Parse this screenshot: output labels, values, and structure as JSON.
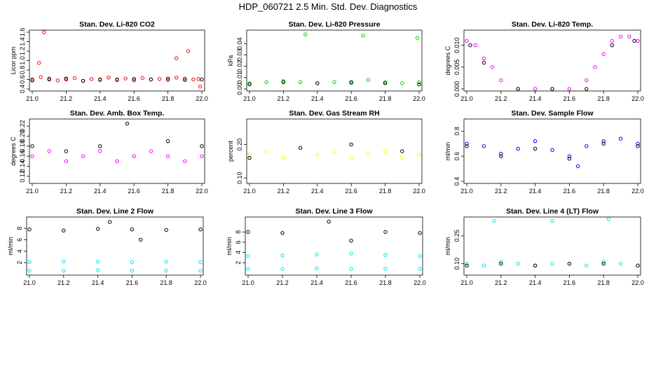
{
  "figure": {
    "title": "HDP_060721  2.5 Min. Std. Dev. Diagnostics"
  },
  "colors": {
    "black": "#000000",
    "red": "#ff0000",
    "green": "#00cc00",
    "magenta": "#ff00ff",
    "yellow": "#ffff00",
    "blue": "#0000ff",
    "cyan": "#00e5ee"
  },
  "chart_data": [
    {
      "type": "scatter",
      "title": "Stan. Dev. Li-820 CO2",
      "xlabel": "",
      "ylabel": "Licor ppm",
      "xlim": [
        21.0,
        22.0
      ],
      "ylim": [
        0.4,
        1.6
      ],
      "xticks": [
        21.0,
        21.2,
        21.4,
        21.6,
        21.8,
        22.0
      ],
      "yticks": [
        0.4,
        0.6,
        0.8,
        1.0,
        1.2,
        1.4,
        1.6
      ],
      "xtick_labels": [
        "21.0",
        "21.2",
        "21.4",
        "21.6",
        "21.8",
        "22.0"
      ],
      "ytick_labels": [
        "0.4",
        "0.6",
        "0.8",
        "1.0",
        "1.2",
        "1.4",
        "1.6"
      ],
      "series": [
        {
          "name": "red",
          "color": "#ff0000",
          "x": [
            21.0,
            21.05,
            21.1,
            21.15,
            21.2,
            21.25,
            21.3,
            21.35,
            21.4,
            21.45,
            21.5,
            21.55,
            21.6,
            21.65,
            21.7,
            21.75,
            21.8,
            21.85,
            21.9,
            21.95,
            21.98,
            21.07,
            21.04,
            21.85,
            21.92,
            21.99
          ],
          "values": [
            0.6,
            0.65,
            0.62,
            0.58,
            0.6,
            0.63,
            0.57,
            0.61,
            0.59,
            0.64,
            0.6,
            0.62,
            0.58,
            0.63,
            0.6,
            0.61,
            0.59,
            0.64,
            0.62,
            0.6,
            0.61,
            1.6,
            0.95,
            1.05,
            1.2,
            0.45
          ]
        },
        {
          "name": "black",
          "color": "#000000",
          "x": [
            21.0,
            21.1,
            21.2,
            21.3,
            21.4,
            21.5,
            21.6,
            21.7,
            21.8,
            21.9,
            22.0
          ],
          "values": [
            0.58,
            0.6,
            0.62,
            0.57,
            0.6,
            0.59,
            0.61,
            0.6,
            0.62,
            0.59,
            0.6
          ]
        }
      ]
    },
    {
      "type": "scatter",
      "title": "Stan. Dev. Li-820 Pressure",
      "xlabel": "",
      "ylabel": "kPa",
      "xlim": [
        21.0,
        22.0
      ],
      "ylim": [
        0.0,
        0.05
      ],
      "xticks": [
        21.0,
        21.2,
        21.4,
        21.6,
        21.8,
        22.0
      ],
      "yticks": [
        0.0,
        0.01,
        0.02,
        0.03,
        0.04
      ],
      "xtick_labels": [
        "21.0",
        "21.2",
        "21.4",
        "21.6",
        "21.8",
        "22.0"
      ],
      "ytick_labels": [
        "0.00",
        "0.01",
        "0.02",
        "0.03",
        "0.04"
      ],
      "series": [
        {
          "name": "green",
          "color": "#00cc00",
          "x": [
            21.0,
            21.1,
            21.2,
            21.3,
            21.4,
            21.5,
            21.6,
            21.7,
            21.8,
            21.9,
            22.0,
            21.33,
            21.67,
            21.99
          ],
          "values": [
            0.005,
            0.006,
            0.007,
            0.006,
            0.005,
            0.006,
            0.005,
            0.008,
            0.006,
            0.005,
            0.006,
            0.048,
            0.047,
            0.045
          ]
        },
        {
          "name": "black",
          "color": "#000000",
          "x": [
            21.0,
            21.2,
            21.4,
            21.6,
            21.8,
            22.0
          ],
          "values": [
            0.004,
            0.006,
            0.005,
            0.006,
            0.005,
            0.004
          ]
        }
      ]
    },
    {
      "type": "scatter",
      "title": "Stan. Dev. Li-820 Temp.",
      "xlabel": "",
      "ylabel": "degrees C",
      "xlim": [
        21.0,
        22.0
      ],
      "ylim": [
        0.0,
        0.013
      ],
      "xticks": [
        21.0,
        21.2,
        21.4,
        21.6,
        21.8,
        22.0
      ],
      "yticks": [
        0.0,
        0.005,
        0.01
      ],
      "xtick_labels": [
        "21.0",
        "21.2",
        "21.4",
        "21.6",
        "21.8",
        "22.0"
      ],
      "ytick_labels": [
        "0.000",
        "0.005",
        "0.010"
      ],
      "series": [
        {
          "name": "magenta",
          "color": "#ff00ff",
          "x": [
            21.0,
            21.05,
            21.1,
            21.15,
            21.2,
            21.3,
            21.4,
            21.5,
            21.6,
            21.7,
            21.75,
            21.8,
            21.85,
            21.9,
            21.95,
            22.0
          ],
          "values": [
            0.011,
            0.01,
            0.007,
            0.005,
            0.002,
            0.0,
            0.0,
            0.0,
            0.0,
            0.002,
            0.005,
            0.008,
            0.011,
            0.012,
            0.012,
            0.011
          ]
        },
        {
          "name": "black",
          "color": "#000000",
          "x": [
            21.02,
            21.1,
            21.3,
            21.5,
            21.7,
            21.85,
            21.98
          ],
          "values": [
            0.01,
            0.006,
            0.0,
            0.0,
            0.0,
            0.01,
            0.011
          ]
        }
      ]
    },
    {
      "type": "scatter",
      "title": "Stan. Dev. Amb. Box Temp.",
      "xlabel": "",
      "ylabel": "degrees C",
      "xlim": [
        21.0,
        22.0
      ],
      "ylim": [
        0.11,
        0.23
      ],
      "xticks": [
        21.0,
        21.2,
        21.4,
        21.6,
        21.8,
        22.0
      ],
      "yticks": [
        0.12,
        0.14,
        0.16,
        0.18,
        0.2,
        0.22
      ],
      "xtick_labels": [
        "21.0",
        "21.2",
        "21.4",
        "21.6",
        "21.8",
        "22.0"
      ],
      "ytick_labels": [
        "0.12",
        "0.14",
        "0.16",
        "0.18",
        "0.20",
        "0.22"
      ],
      "series": [
        {
          "name": "magenta",
          "color": "#ff00ff",
          "x": [
            21.0,
            21.1,
            21.2,
            21.3,
            21.4,
            21.5,
            21.6,
            21.7,
            21.8,
            21.9,
            22.0
          ],
          "values": [
            0.16,
            0.17,
            0.15,
            0.16,
            0.17,
            0.15,
            0.16,
            0.17,
            0.16,
            0.15,
            0.16
          ]
        },
        {
          "name": "black",
          "color": "#000000",
          "x": [
            21.0,
            21.2,
            21.4,
            21.56,
            21.8,
            22.0
          ],
          "values": [
            0.18,
            0.17,
            0.18,
            0.225,
            0.19,
            0.18
          ]
        }
      ]
    },
    {
      "type": "scatter",
      "title": "Stan. Dev. Gas Stream RH",
      "xlabel": "",
      "ylabel": "percent",
      "xlim": [
        21.0,
        22.0
      ],
      "ylim": [
        0.09,
        0.27
      ],
      "xticks": [
        21.0,
        21.2,
        21.4,
        21.6,
        21.8,
        22.0
      ],
      "yticks": [
        0.1,
        0.2
      ],
      "xtick_labels": [
        "21.0",
        "21.2",
        "21.4",
        "21.6",
        "21.8",
        "22.0"
      ],
      "ytick_labels": [
        "0.10",
        "0.20"
      ],
      "series": [
        {
          "name": "yellow",
          "color": "#ffff00",
          "x": [
            21.0,
            21.1,
            21.2,
            21.3,
            21.4,
            21.5,
            21.6,
            21.7,
            21.8,
            21.9,
            22.0
          ],
          "values": [
            0.17,
            0.18,
            0.16,
            0.19,
            0.17,
            0.18,
            0.16,
            0.17,
            0.18,
            0.16,
            0.17
          ]
        },
        {
          "name": "black",
          "color": "#000000",
          "x": [
            21.0,
            21.3,
            21.6,
            21.9
          ],
          "values": [
            0.16,
            0.19,
            0.2,
            0.18
          ]
        }
      ]
    },
    {
      "type": "scatter",
      "title": "Stan. Dev. Sample Flow",
      "xlabel": "",
      "ylabel": "ml/min",
      "xlim": [
        21.0,
        22.0
      ],
      "ylim": [
        0.4,
        0.88
      ],
      "xticks": [
        21.0,
        21.2,
        21.4,
        21.6,
        21.8,
        22.0
      ],
      "yticks": [
        0.4,
        0.6,
        0.8
      ],
      "xtick_labels": [
        "21.0",
        "21.2",
        "21.4",
        "21.6",
        "21.8",
        "22.0"
      ],
      "ytick_labels": [
        "0.4",
        "0.6",
        "0.8"
      ],
      "series": [
        {
          "name": "blue",
          "color": "#0000ff",
          "x": [
            21.0,
            21.1,
            21.2,
            21.3,
            21.4,
            21.5,
            21.6,
            21.65,
            21.7,
            21.8,
            21.9,
            22.0
          ],
          "values": [
            0.7,
            0.68,
            0.62,
            0.66,
            0.72,
            0.65,
            0.6,
            0.52,
            0.68,
            0.72,
            0.74,
            0.7
          ]
        },
        {
          "name": "black",
          "color": "#000000",
          "x": [
            21.0,
            21.2,
            21.4,
            21.6,
            21.8,
            22.0
          ],
          "values": [
            0.68,
            0.6,
            0.66,
            0.58,
            0.7,
            0.68
          ]
        }
      ]
    },
    {
      "type": "scatter",
      "title": "Stan. Dev. Line 2 Flow",
      "xlabel": "",
      "ylabel": "ml/min",
      "xlim": [
        21.0,
        22.0
      ],
      "ylim": [
        0.2,
        9.6
      ],
      "xticks": [
        21.0,
        21.2,
        21.4,
        21.6,
        21.8,
        22.0
      ],
      "yticks": [
        2,
        4,
        6,
        8
      ],
      "xtick_labels": [
        "21.0",
        "21.2",
        "21.4",
        "21.6",
        "21.8",
        "22.0"
      ],
      "ytick_labels": [
        "2",
        "4",
        "6",
        "8"
      ],
      "series": [
        {
          "name": "cyan-upper",
          "color": "#00e5ee",
          "x": [
            21.0,
            21.2,
            21.4,
            21.6,
            21.8,
            22.0
          ],
          "values": [
            2.1,
            2.2,
            2.2,
            2.1,
            2.2,
            2.1
          ]
        },
        {
          "name": "cyan-lower",
          "color": "#00e5ee",
          "x": [
            21.0,
            21.2,
            21.4,
            21.6,
            21.8,
            22.0
          ],
          "values": [
            0.6,
            0.6,
            0.7,
            0.6,
            0.6,
            0.6
          ]
        },
        {
          "name": "black",
          "color": "#000000",
          "x": [
            21.0,
            21.2,
            21.4,
            21.47,
            21.6,
            21.65,
            21.8,
            22.0
          ],
          "values": [
            7.8,
            7.6,
            7.9,
            9.1,
            7.8,
            6.0,
            7.7,
            7.8
          ]
        }
      ]
    },
    {
      "type": "scatter",
      "title": "Stan. Dev. Line 3 Flow",
      "xlabel": "",
      "ylabel": "ml/min",
      "xlim": [
        21.0,
        22.0
      ],
      "ylim": [
        0.0,
        10.5
      ],
      "xticks": [
        21.0,
        21.2,
        21.4,
        21.6,
        21.8,
        22.0
      ],
      "yticks": [
        2,
        4,
        6,
        8
      ],
      "xtick_labels": [
        "21.0",
        "21.2",
        "21.4",
        "21.6",
        "21.8",
        "22.0"
      ],
      "ytick_labels": [
        "2",
        "4",
        "6",
        "8"
      ],
      "series": [
        {
          "name": "cyan-upper",
          "color": "#00e5ee",
          "x": [
            21.0,
            21.2,
            21.4,
            21.6,
            21.8,
            22.0
          ],
          "values": [
            3.3,
            3.4,
            3.6,
            3.8,
            3.5,
            3.3
          ]
        },
        {
          "name": "cyan-lower",
          "color": "#00e5ee",
          "x": [
            21.0,
            21.2,
            21.4,
            21.6,
            21.8,
            22.0
          ],
          "values": [
            0.8,
            0.8,
            0.9,
            0.8,
            0.8,
            0.8
          ]
        },
        {
          "name": "black",
          "color": "#000000",
          "x": [
            21.0,
            21.2,
            21.47,
            21.6,
            21.8,
            22.0
          ],
          "values": [
            8.0,
            7.8,
            10.0,
            6.3,
            8.0,
            7.8
          ]
        }
      ]
    },
    {
      "type": "scatter",
      "title": "Stan. Dev. Line 4 (LT) Flow",
      "xlabel": "",
      "ylabel": "ml/min",
      "xlim": [
        21.0,
        22.0
      ],
      "ylim": [
        0.05,
        0.34
      ],
      "xticks": [
        21.0,
        21.2,
        21.4,
        21.6,
        21.8,
        22.0
      ],
      "yticks": [
        0.1,
        0.25
      ],
      "xtick_labels": [
        "21.0",
        "21.2",
        "21.4",
        "21.6",
        "21.8",
        "22.0"
      ],
      "ytick_labels": [
        "0.10",
        "0.25"
      ],
      "series": [
        {
          "name": "cyan",
          "color": "#00e5ee",
          "x": [
            21.0,
            21.1,
            21.2,
            21.3,
            21.4,
            21.5,
            21.6,
            21.7,
            21.8,
            21.9,
            22.0,
            21.16,
            21.5,
            21.83
          ],
          "values": [
            0.1,
            0.09,
            0.11,
            0.1,
            0.09,
            0.1,
            0.1,
            0.09,
            0.11,
            0.1,
            0.09,
            0.33,
            0.33,
            0.34
          ]
        },
        {
          "name": "black",
          "color": "#000000",
          "x": [
            21.0,
            21.2,
            21.4,
            21.6,
            21.8,
            22.0
          ],
          "values": [
            0.09,
            0.1,
            0.09,
            0.1,
            0.1,
            0.09
          ]
        }
      ]
    }
  ]
}
